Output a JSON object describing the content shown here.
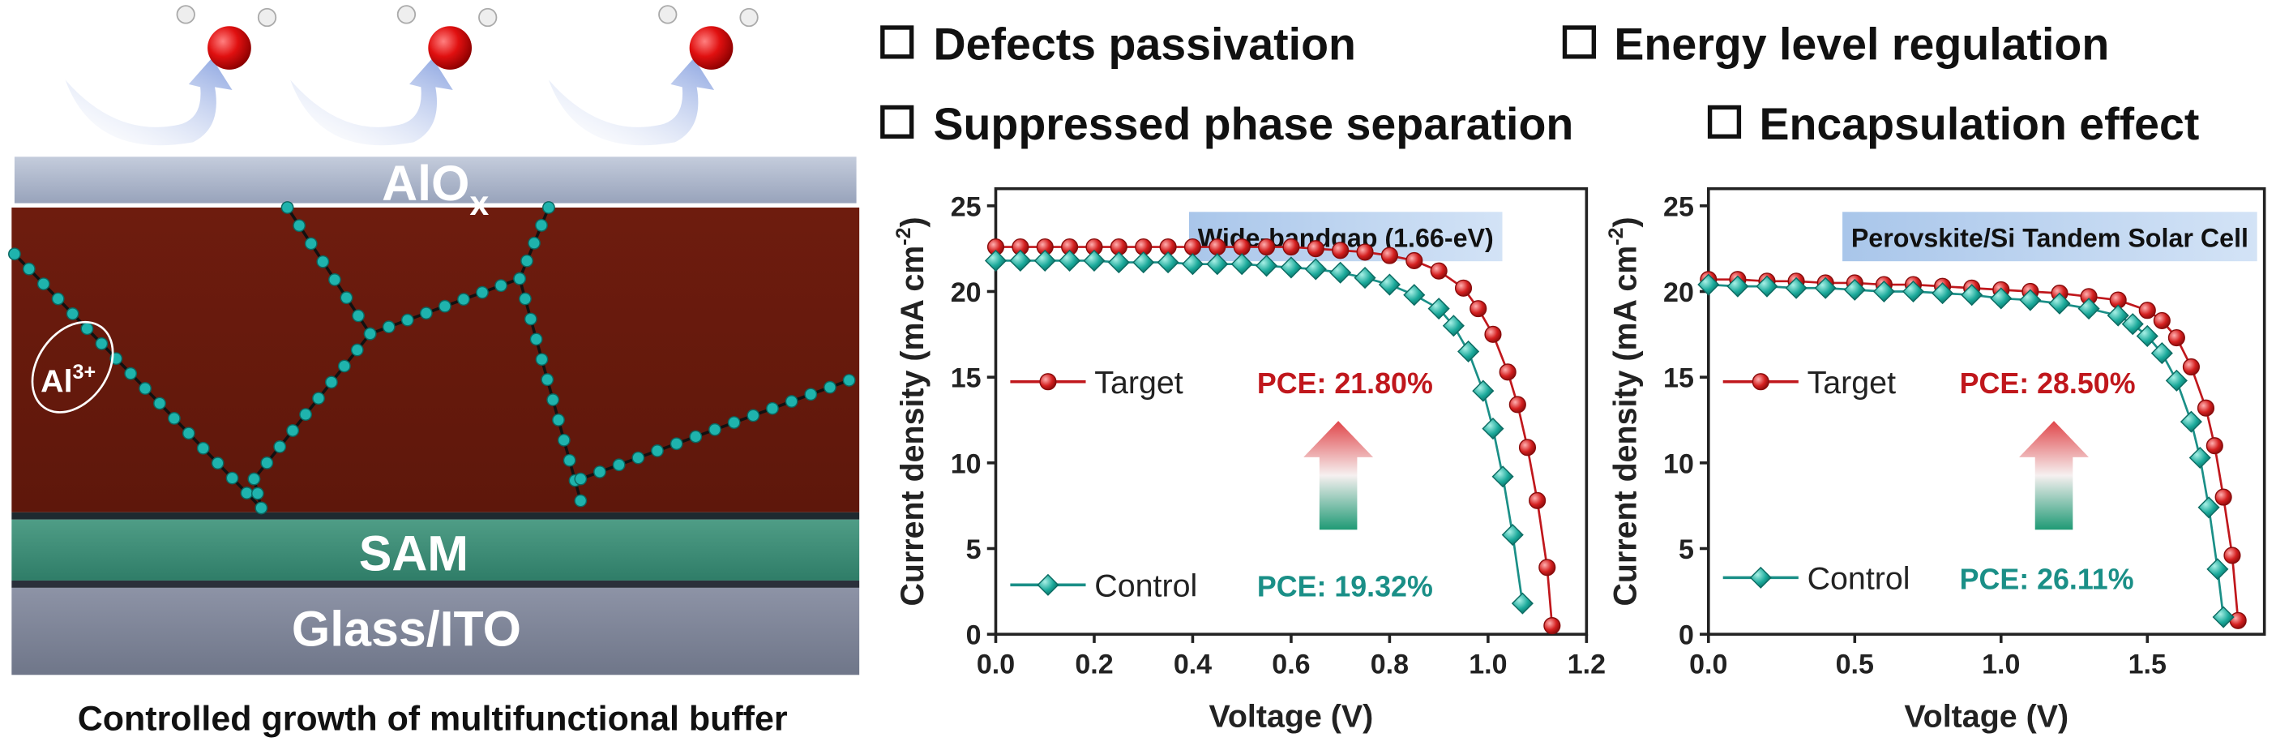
{
  "checklist": [
    "Defects passivation",
    "Energy level regulation",
    "Suppressed phase separation",
    "Encapsulation effect"
  ],
  "schematic": {
    "top_layer": {
      "text": "AlO",
      "subscript": "x"
    },
    "ion": {
      "text": "Al",
      "superscript": "3+"
    },
    "sam_layer": "SAM",
    "substrate_layer": "Glass/ITO",
    "caption": "Controlled growth of multifunctional buffer"
  },
  "chart_data": [
    {
      "type": "line",
      "title": "Wide-bandgap (1.66-eV)",
      "x_label": "Voltage (V)",
      "y_label": {
        "text": "Current density (mA cm",
        "superscript": "-2",
        "end": ")"
      },
      "xlim": [
        0,
        1.2
      ],
      "ylim": [
        0,
        26
      ],
      "xticks": [
        {
          "value": 0,
          "label": "0.0"
        },
        0.2,
        0.4,
        0.6,
        0.8,
        {
          "value": 1,
          "label": "1.0"
        },
        1.2
      ],
      "yticks": [
        0,
        5,
        10,
        15,
        20,
        25
      ],
      "legend": "left",
      "series": [
        {
          "name": "Target",
          "color": "#c0171c",
          "marker": "circle",
          "annotation": "PCE: 21.80%",
          "x": [
            0,
            0.05,
            0.1,
            0.15,
            0.2,
            0.25,
            0.3,
            0.35,
            0.4,
            0.45,
            0.5,
            0.55,
            0.6,
            0.65,
            0.7,
            0.75,
            0.8,
            0.85,
            0.9,
            0.95,
            0.98,
            1.01,
            1.04,
            1.06,
            1.08,
            1.1,
            1.12,
            1.13
          ],
          "values": [
            22.6,
            22.6,
            22.6,
            22.6,
            22.6,
            22.6,
            22.6,
            22.6,
            22.6,
            22.6,
            22.6,
            22.6,
            22.6,
            22.5,
            22.4,
            22.3,
            22.1,
            21.8,
            21.2,
            20.2,
            19.0,
            17.5,
            15.3,
            13.4,
            10.9,
            7.8,
            3.9,
            0.5
          ]
        },
        {
          "name": "Control",
          "color": "#1a8f87",
          "marker": "diamond",
          "annotation": "PCE: 19.32%",
          "x": [
            0,
            0.05,
            0.1,
            0.15,
            0.2,
            0.25,
            0.3,
            0.35,
            0.4,
            0.45,
            0.5,
            0.55,
            0.6,
            0.65,
            0.7,
            0.75,
            0.8,
            0.85,
            0.9,
            0.93,
            0.96,
            0.99,
            1.01,
            1.03,
            1.05,
            1.07
          ],
          "values": [
            21.8,
            21.8,
            21.8,
            21.8,
            21.8,
            21.7,
            21.7,
            21.7,
            21.6,
            21.6,
            21.6,
            21.5,
            21.4,
            21.3,
            21.1,
            20.8,
            20.4,
            19.8,
            19.0,
            18.0,
            16.5,
            14.2,
            12.0,
            9.2,
            5.8,
            1.8
          ]
        }
      ]
    },
    {
      "type": "line",
      "title": "Perovskite/Si Tandem Solar Cell",
      "x_label": "Voltage (V)",
      "y_label": {
        "text": "Current density (mA cm",
        "superscript": "-2",
        "end": ")"
      },
      "xlim": [
        0,
        1.9
      ],
      "ylim": [
        0,
        26
      ],
      "xticks": [
        {
          "value": 0,
          "label": "0.0"
        },
        0.5,
        {
          "value": 1,
          "label": "1.0"
        },
        1.5
      ],
      "yticks": [
        0,
        5,
        10,
        15,
        20,
        25
      ],
      "legend": "left",
      "series": [
        {
          "name": "Target",
          "color": "#c0171c",
          "marker": "circle",
          "annotation": "PCE: 28.50%",
          "x": [
            0,
            0.1,
            0.2,
            0.3,
            0.4,
            0.5,
            0.6,
            0.7,
            0.8,
            0.9,
            1.0,
            1.1,
            1.2,
            1.3,
            1.4,
            1.5,
            1.55,
            1.6,
            1.65,
            1.7,
            1.73,
            1.76,
            1.79,
            1.81
          ],
          "values": [
            20.7,
            20.7,
            20.6,
            20.6,
            20.5,
            20.5,
            20.4,
            20.4,
            20.3,
            20.2,
            20.1,
            20.0,
            19.9,
            19.7,
            19.5,
            18.9,
            18.3,
            17.3,
            15.6,
            13.2,
            11.0,
            8.0,
            4.6,
            0.8
          ]
        },
        {
          "name": "Control",
          "color": "#1a8f87",
          "marker": "diamond",
          "annotation": "PCE: 26.11%",
          "x": [
            0,
            0.1,
            0.2,
            0.3,
            0.4,
            0.5,
            0.6,
            0.7,
            0.8,
            0.9,
            1.0,
            1.1,
            1.2,
            1.3,
            1.4,
            1.45,
            1.5,
            1.55,
            1.6,
            1.65,
            1.68,
            1.71,
            1.74,
            1.76
          ],
          "values": [
            20.4,
            20.3,
            20.3,
            20.2,
            20.2,
            20.1,
            20.0,
            20.0,
            19.9,
            19.8,
            19.6,
            19.5,
            19.3,
            19.0,
            18.6,
            18.1,
            17.4,
            16.4,
            14.8,
            12.4,
            10.3,
            7.4,
            3.8,
            1.0
          ]
        }
      ]
    }
  ]
}
